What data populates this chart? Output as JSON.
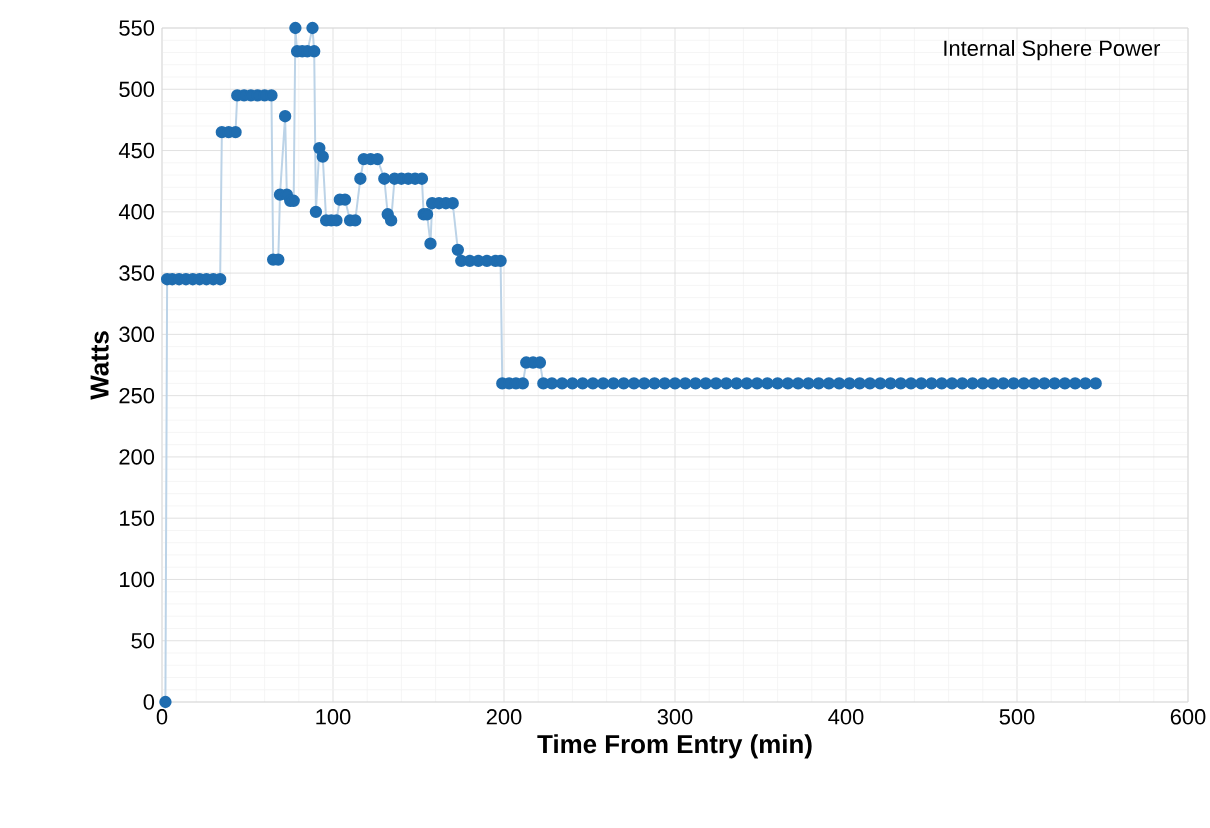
{
  "chart_data": {
    "type": "line",
    "title": "Internal Sphere Power",
    "xlabel": "Time From Entry (min)",
    "ylabel": "Watts",
    "xlim": [
      0,
      600
    ],
    "xticks": [
      0,
      100,
      200,
      300,
      400,
      500,
      600
    ],
    "ylim": [
      0,
      550
    ],
    "yticks": [
      0,
      50,
      100,
      150,
      200,
      250,
      300,
      350,
      400,
      450,
      500,
      550
    ],
    "grid": true,
    "marker": "circle",
    "line_style": "solid",
    "series": [
      {
        "color": "#1f6db0",
        "x": [
          2,
          3,
          6,
          10,
          14,
          18,
          22,
          26,
          30,
          34,
          35,
          39,
          43,
          44,
          48,
          52,
          56,
          60,
          64,
          65,
          68,
          69,
          72,
          73,
          75,
          77,
          78,
          79,
          82,
          85,
          88,
          89,
          90,
          92,
          94,
          96,
          99,
          102,
          104,
          107,
          110,
          113,
          116,
          118,
          122,
          126,
          130,
          132,
          134,
          136,
          140,
          144,
          148,
          152,
          153,
          155,
          157,
          158,
          162,
          166,
          170,
          173,
          175,
          180,
          185,
          190,
          195,
          198,
          199,
          203,
          207,
          211,
          213,
          217,
          221,
          223,
          228,
          234,
          240,
          246,
          252,
          258,
          264,
          270,
          276,
          282,
          288,
          294,
          300,
          306,
          312,
          318,
          324,
          330,
          336,
          342,
          348,
          354,
          360,
          366,
          372,
          378,
          384,
          390,
          396,
          402,
          408,
          414,
          420,
          426,
          432,
          438,
          444,
          450,
          456,
          462,
          468,
          474,
          480,
          486,
          492,
          498,
          504,
          510,
          516,
          522,
          528,
          534,
          540,
          546
        ],
        "values": [
          0,
          345,
          345,
          345,
          345,
          345,
          345,
          345,
          345,
          345,
          465,
          465,
          465,
          495,
          495,
          495,
          495,
          495,
          495,
          361,
          361,
          414,
          478,
          414,
          409,
          409,
          550,
          531,
          531,
          531,
          550,
          531,
          400,
          452,
          445,
          393,
          393,
          393,
          410,
          410,
          393,
          393,
          427,
          443,
          443,
          443,
          427,
          398,
          393,
          427,
          427,
          427,
          427,
          427,
          398,
          398,
          374,
          407,
          407,
          407,
          407,
          369,
          360,
          360,
          360,
          360,
          360,
          360,
          260,
          260,
          260,
          260,
          277,
          277,
          277,
          260,
          260,
          260,
          260,
          260,
          260,
          260,
          260,
          260,
          260,
          260,
          260,
          260,
          260,
          260,
          260,
          260,
          260,
          260,
          260,
          260,
          260,
          260,
          260,
          260,
          260,
          260,
          260,
          260,
          260,
          260,
          260,
          260,
          260,
          260,
          260,
          260,
          260,
          260,
          260,
          260,
          260,
          260,
          260,
          260,
          260,
          260,
          260,
          260,
          260,
          260,
          260,
          260,
          260,
          260
        ]
      }
    ]
  }
}
